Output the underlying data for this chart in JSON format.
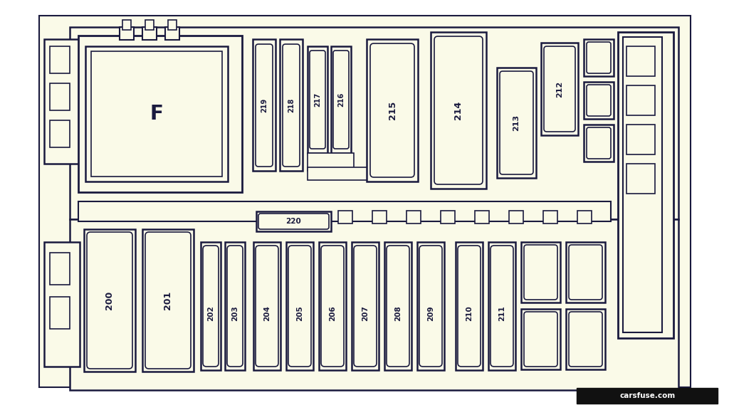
{
  "bg_color": "#fafae8",
  "outer_bg": "#ffffff",
  "line_color": "#1a1a3e",
  "fig_width": 10.24,
  "fig_height": 5.76,
  "dpi": 100
}
